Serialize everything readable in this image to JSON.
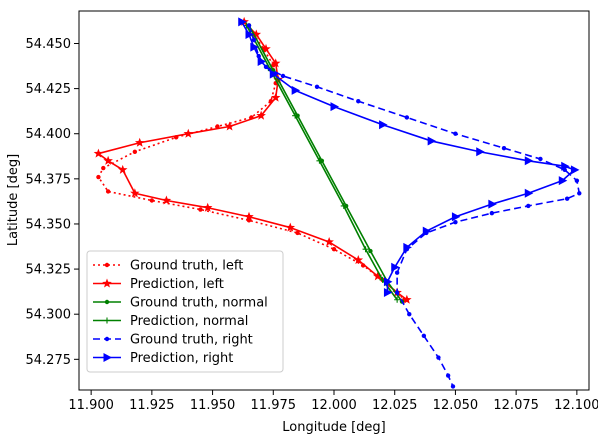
{
  "chart_data": {
    "type": "line",
    "xlabel": "Longitude [deg]",
    "ylabel": "Latitude [deg]",
    "xlim": [
      11.895,
      12.105
    ],
    "ylim": [
      54.258,
      54.468
    ],
    "xticks": [
      "11.900",
      "11.925",
      "11.950",
      "11.975",
      "12.000",
      "12.025",
      "12.050",
      "12.075",
      "12.100"
    ],
    "yticks": [
      "54.275",
      "54.300",
      "54.325",
      "54.350",
      "54.375",
      "54.400",
      "54.425",
      "54.450"
    ],
    "grid": false,
    "legend_position": "lower-left",
    "series": [
      {
        "name": "Ground truth, left",
        "color": "#ff0000",
        "linestyle": "dotted",
        "marker": "dot",
        "points": [
          [
            11.963,
            54.462
          ],
          [
            11.967,
            54.455
          ],
          [
            11.971,
            54.447
          ],
          [
            11.975,
            54.438
          ],
          [
            11.976,
            54.428
          ],
          [
            11.974,
            54.418
          ],
          [
            11.966,
            54.409
          ],
          [
            11.952,
            54.404
          ],
          [
            11.935,
            54.398
          ],
          [
            11.918,
            54.39
          ],
          [
            11.905,
            54.381
          ],
          [
            11.903,
            54.376
          ],
          [
            11.907,
            54.368
          ],
          [
            11.925,
            54.363
          ],
          [
            11.945,
            54.358
          ],
          [
            11.965,
            54.352
          ],
          [
            11.985,
            54.345
          ],
          [
            12.0,
            54.336
          ],
          [
            12.012,
            54.327
          ],
          [
            12.02,
            54.319
          ],
          [
            12.026,
            54.312
          ],
          [
            12.029,
            54.308
          ]
        ]
      },
      {
        "name": "Prediction, left",
        "color": "#ff0000",
        "linestyle": "solid",
        "marker": "star",
        "points": [
          [
            11.963,
            54.462
          ],
          [
            11.968,
            54.455
          ],
          [
            11.972,
            54.447
          ],
          [
            11.976,
            54.439
          ],
          [
            11.977,
            54.43
          ],
          [
            11.976,
            54.42
          ],
          [
            11.97,
            54.41
          ],
          [
            11.957,
            54.404
          ],
          [
            11.94,
            54.4
          ],
          [
            11.92,
            54.395
          ],
          [
            11.903,
            54.389
          ],
          [
            11.907,
            54.385
          ],
          [
            11.913,
            54.38
          ],
          [
            11.918,
            54.367
          ],
          [
            11.931,
            54.363
          ],
          [
            11.948,
            54.359
          ],
          [
            11.965,
            54.354
          ],
          [
            11.982,
            54.348
          ],
          [
            11.998,
            54.34
          ],
          [
            12.01,
            54.33
          ],
          [
            12.018,
            54.321
          ],
          [
            12.026,
            54.312
          ],
          [
            12.03,
            54.308
          ]
        ]
      },
      {
        "name": "Ground truth, normal",
        "color": "#008000",
        "linestyle": "solid",
        "marker": "dot",
        "points": [
          [
            11.965,
            54.46
          ],
          [
            11.975,
            54.435
          ],
          [
            11.985,
            54.41
          ],
          [
            11.995,
            54.385
          ],
          [
            12.005,
            54.36
          ],
          [
            12.015,
            54.335
          ],
          [
            12.022,
            54.318
          ],
          [
            12.028,
            54.307
          ]
        ]
      },
      {
        "name": "Prediction, normal",
        "color": "#008000",
        "linestyle": "solid",
        "marker": "plus",
        "points": [
          [
            11.964,
            54.46
          ],
          [
            11.974,
            54.435
          ],
          [
            11.984,
            54.41
          ],
          [
            11.994,
            54.385
          ],
          [
            12.004,
            54.36
          ],
          [
            12.013,
            54.336
          ],
          [
            12.02,
            54.319
          ],
          [
            12.026,
            54.308
          ]
        ]
      },
      {
        "name": "Ground truth, right",
        "color": "#0000ff",
        "linestyle": "dashed",
        "marker": "dot",
        "points": [
          [
            11.965,
            54.46
          ],
          [
            11.967,
            54.452
          ],
          [
            11.969,
            54.443
          ],
          [
            11.972,
            54.437
          ],
          [
            11.979,
            54.432
          ],
          [
            11.993,
            54.426
          ],
          [
            12.01,
            54.418
          ],
          [
            12.03,
            54.409
          ],
          [
            12.05,
            54.4
          ],
          [
            12.07,
            54.392
          ],
          [
            12.085,
            54.386
          ],
          [
            12.095,
            54.38
          ],
          [
            12.1,
            54.374
          ],
          [
            12.101,
            54.367
          ],
          [
            12.096,
            54.364
          ],
          [
            12.08,
            54.36
          ],
          [
            12.065,
            54.356
          ],
          [
            12.05,
            54.351
          ],
          [
            12.038,
            54.345
          ],
          [
            12.03,
            54.336
          ],
          [
            12.026,
            54.323
          ],
          [
            12.026,
            54.312
          ],
          [
            12.031,
            54.3
          ],
          [
            12.037,
            54.288
          ],
          [
            12.043,
            54.276
          ],
          [
            12.047,
            54.266
          ],
          [
            12.049,
            54.26
          ]
        ]
      },
      {
        "name": "Prediction, right",
        "color": "#0000ff",
        "linestyle": "solid",
        "marker": "triangle",
        "points": [
          [
            11.962,
            54.462
          ],
          [
            11.965,
            54.455
          ],
          [
            11.967,
            54.448
          ],
          [
            11.97,
            54.44
          ],
          [
            11.975,
            54.433
          ],
          [
            11.984,
            54.424
          ],
          [
            12.0,
            54.415
          ],
          [
            12.02,
            54.405
          ],
          [
            12.04,
            54.396
          ],
          [
            12.06,
            54.39
          ],
          [
            12.08,
            54.385
          ],
          [
            12.095,
            54.382
          ],
          [
            12.099,
            54.38
          ],
          [
            12.094,
            54.374
          ],
          [
            12.08,
            54.367
          ],
          [
            12.065,
            54.361
          ],
          [
            12.05,
            54.354
          ],
          [
            12.038,
            54.346
          ],
          [
            12.03,
            54.337
          ],
          [
            12.025,
            54.326
          ],
          [
            12.022,
            54.318
          ],
          [
            12.022,
            54.312
          ]
        ]
      }
    ]
  }
}
